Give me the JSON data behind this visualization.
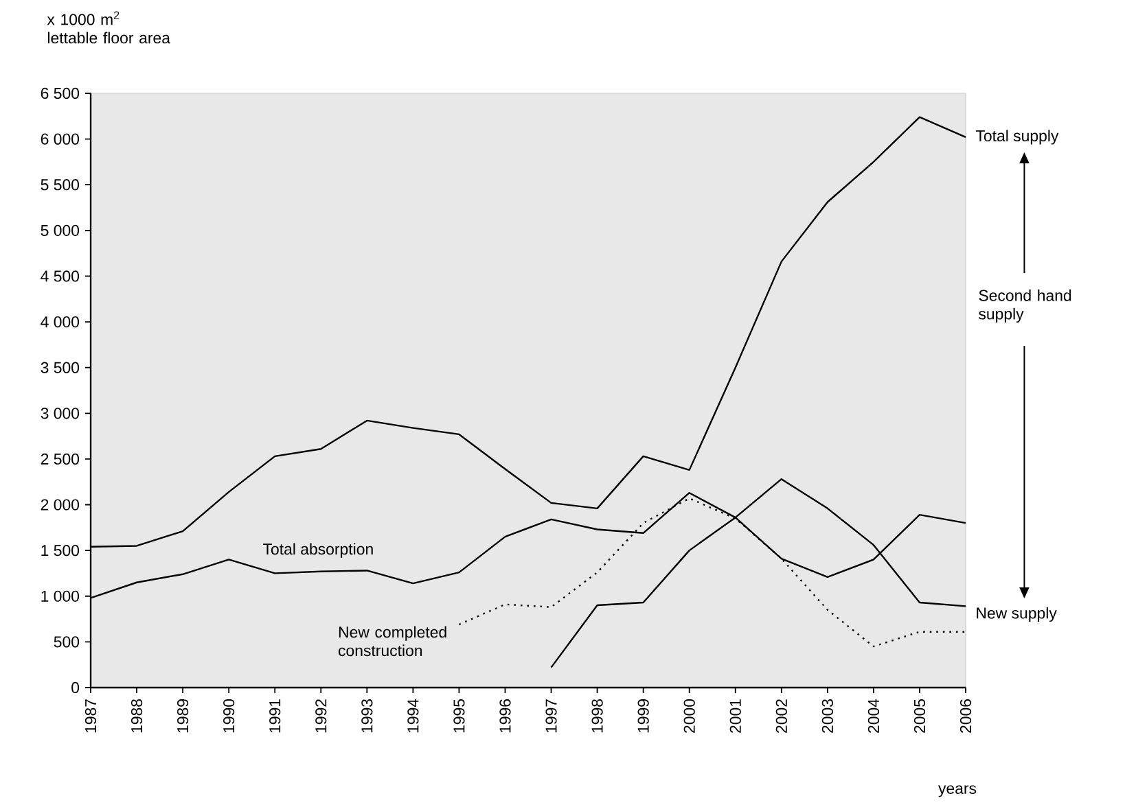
{
  "chart_data": {
    "type": "line",
    "ylabel": "x 1000 m$^{2}$ lettable floor area",
    "xlabel": "years",
    "categories": [
      "1987",
      "1988",
      "1989",
      "1990",
      "1991",
      "1992",
      "1993",
      "1994",
      "1995",
      "1996",
      "1997",
      "1998",
      "1999",
      "2000",
      "2001",
      "2002",
      "2003",
      "2004",
      "2005",
      "2006"
    ],
    "ylim": [
      0,
      6500
    ],
    "yticks": [
      0,
      500,
      {
        "value": 1000,
        "label": "1 000"
      },
      {
        "value": 1500,
        "label": "1 500"
      },
      {
        "value": 2000,
        "label": "2 000"
      },
      {
        "value": 2500,
        "label": "2 500"
      },
      {
        "value": 3000,
        "label": "3 000"
      },
      {
        "value": 3500,
        "label": "3 500"
      },
      {
        "value": 4000,
        "label": "4 000"
      },
      {
        "value": 4500,
        "label": "4 500"
      },
      {
        "value": 5000,
        "label": "5 000"
      },
      {
        "value": 5500,
        "label": "5 500"
      },
      {
        "value": 6000,
        "label": "6 000"
      },
      {
        "value": 6500,
        "label": "6 500"
      }
    ],
    "series": [
      {
        "name": "Total supply",
        "color": "#000000",
        "line_style": "solid",
        "values": [
          1540,
          1550,
          1710,
          2140,
          2530,
          2610,
          2920,
          2840,
          2770,
          2390,
          2020,
          1960,
          2530,
          2380,
          3500,
          4660,
          5310,
          5750,
          6240,
          6020
        ]
      },
      {
        "name": "Total absorption",
        "color": "#000000",
        "line_style": "solid",
        "values": [
          980,
          1150,
          1240,
          1400,
          1250,
          1270,
          1280,
          1140,
          1260,
          1650,
          1840,
          1730,
          1690,
          2130,
          1860,
          1410,
          1210,
          1400,
          1890,
          1800
        ]
      },
      {
        "name": "New completed construction",
        "color": "#000000",
        "line_style": "dotted",
        "values": [
          null,
          null,
          null,
          null,
          null,
          null,
          null,
          null,
          690,
          910,
          880,
          1260,
          1800,
          2070,
          1850,
          1410,
          850,
          450,
          610,
          610
        ]
      },
      {
        "name": "New supply",
        "color": "#000000",
        "line_style": "solid",
        "values": [
          null,
          null,
          null,
          null,
          null,
          null,
          null,
          null,
          null,
          null,
          220,
          900,
          930,
          1500,
          1860,
          2280,
          1960,
          1560,
          930,
          890
        ]
      }
    ],
    "annotations": [
      "Second hand supply"
    ]
  }
}
